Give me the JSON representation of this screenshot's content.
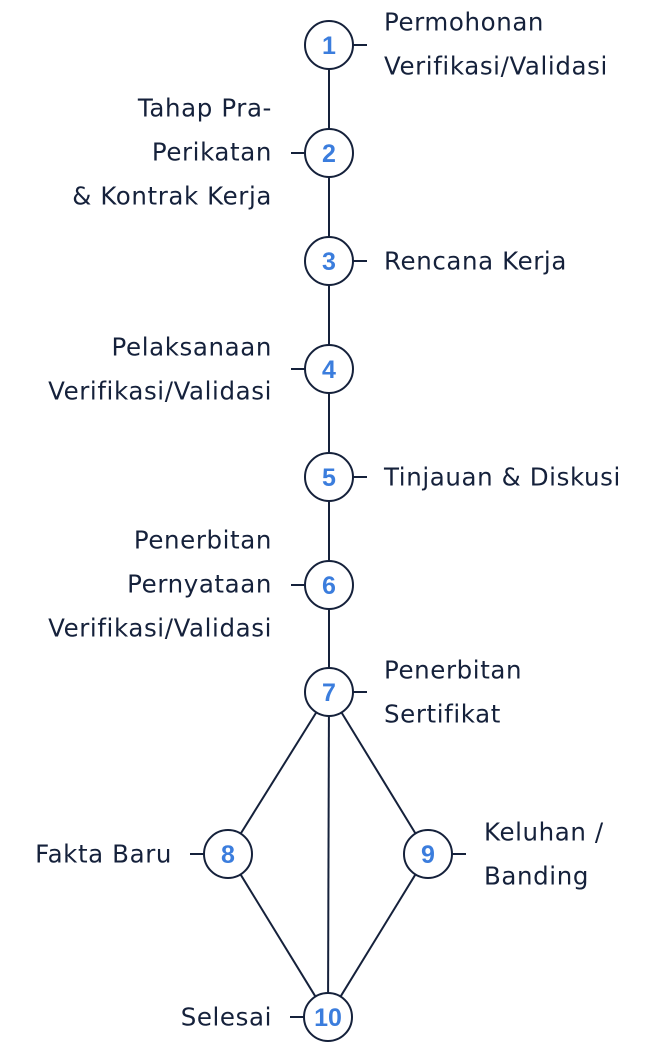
{
  "steps": [
    {
      "number": "1",
      "lines": [
        "Permohonan",
        "Verifikasi/Validasi"
      ]
    },
    {
      "number": "2",
      "lines": [
        "Tahap Pra-",
        "Perikatan",
        "& Kontrak Kerja"
      ]
    },
    {
      "number": "3",
      "lines": [
        "Rencana Kerja"
      ]
    },
    {
      "number": "4",
      "lines": [
        "Pelaksanaan",
        "Verifikasi/Validasi"
      ]
    },
    {
      "number": "5",
      "lines": [
        "Tinjauan & Diskusi"
      ]
    },
    {
      "number": "6",
      "lines": [
        "Penerbitan",
        "Pernyataan",
        "Verifikasi/Validasi"
      ]
    },
    {
      "number": "7",
      "lines": [
        "Penerbitan",
        "Sertifikat"
      ]
    },
    {
      "number": "8",
      "lines": [
        "Fakta Baru"
      ]
    },
    {
      "number": "9",
      "lines": [
        "Keluhan /",
        "Banding"
      ]
    },
    {
      "number": "10",
      "lines": [
        "Selesai"
      ]
    }
  ],
  "colors": {
    "number": "#3b7ddd",
    "line": "#15213b",
    "text": "#15213b"
  }
}
